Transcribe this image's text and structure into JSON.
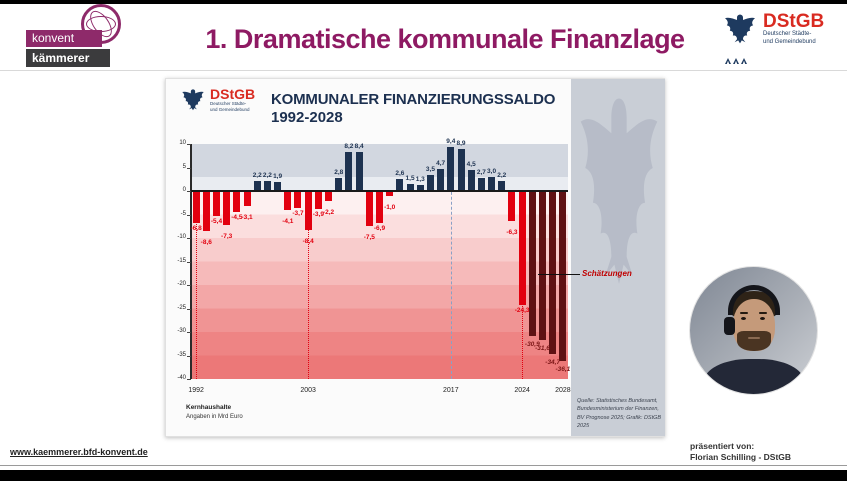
{
  "header": {
    "title": "1. Dramatische kommunale Finanzlage",
    "konvent": {
      "line1": "konvent",
      "line2": "kämmerer"
    }
  },
  "dstgb": {
    "name": "DStGB",
    "sub1": "Deutscher Städte-",
    "sub2": "und Gemeindebund"
  },
  "chart_panel": {
    "title": "KOMMUNALER FINANZIERUNGSSALDO",
    "subtitle": "1992-2028",
    "footnote1": "Kernhaushalte",
    "footnote2": "Angaben in Mrd Euro",
    "estimates_label": "Schätzungen",
    "source": [
      "Quelle: Statistisches Bundesamt,",
      "Bundesministerium der Finanzen,",
      "BV Prognose 2025; Grafik: DStGB 2025"
    ]
  },
  "chart_data": {
    "type": "bar",
    "title": "Kommunaler Finanzierungssaldo 1992-2028",
    "ylabel": "Mrd Euro",
    "ylim": [
      -40,
      10
    ],
    "yticks": [
      10,
      5,
      0,
      -5,
      -10,
      -15,
      -20,
      -25,
      -30,
      -35,
      -40
    ],
    "xticks": [
      1992,
      2003,
      2017,
      2024,
      2028
    ],
    "reference_lines": [
      1992,
      2003,
      2017,
      2024
    ],
    "estimate_years": [
      2025,
      2026,
      2027,
      2028
    ],
    "years": [
      1992,
      1993,
      1994,
      1995,
      1996,
      1997,
      1998,
      1999,
      2000,
      2001,
      2002,
      2003,
      2004,
      2005,
      2006,
      2007,
      2008,
      2009,
      2010,
      2011,
      2012,
      2013,
      2014,
      2015,
      2016,
      2017,
      2018,
      2019,
      2020,
      2021,
      2022,
      2023,
      2024,
      2025,
      2026,
      2027,
      2028
    ],
    "values": [
      -6.8,
      -8.6,
      -5.4,
      -7.3,
      -4.5,
      -3.1,
      2.2,
      2.2,
      1.9,
      -4.1,
      -3.7,
      -8.4,
      -3.9,
      -2.2,
      2.8,
      8.2,
      8.4,
      -7.5,
      -6.9,
      -1.0,
      2.6,
      1.5,
      1.3,
      3.5,
      4.7,
      9.4,
      8.9,
      4.5,
      2.7,
      3.0,
      2.2,
      -6.3,
      -24.3,
      -30.9,
      -31.6,
      -34.7,
      -36.1
    ],
    "colors": {
      "positive": "#1d3250",
      "negative": "#e2000f",
      "estimate": "#5f1113",
      "estimate_label": "#7c1616",
      "refline_red": "#e2000f",
      "refline_blue": "#8aa0c6"
    }
  },
  "footer": {
    "url": "www.kaemmerer.bfd-konvent.de",
    "presented_by_label": "präsentiert von:",
    "presenter": "Florian Schilling - DStGB"
  }
}
